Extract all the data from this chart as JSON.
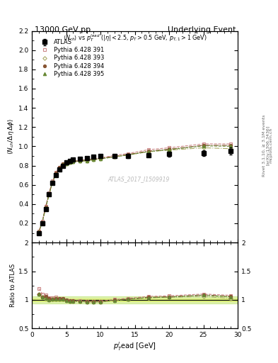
{
  "title_left": "13000 GeV pp",
  "title_right": "Underlying Event",
  "watermark": "ATLAS_2017_I1509919",
  "ylim_main": [
    0.0,
    2.2
  ],
  "ylim_ratio": [
    0.5,
    2.0
  ],
  "xlim": [
    0,
    30
  ],
  "yticks_main": [
    0.2,
    0.4,
    0.6,
    0.8,
    1.0,
    1.2,
    1.4,
    1.6,
    1.8,
    2.0,
    2.2
  ],
  "atlas_x": [
    1.0,
    1.5,
    2.0,
    2.5,
    3.0,
    3.5,
    4.0,
    4.5,
    5.0,
    5.5,
    6.0,
    7.0,
    8.0,
    9.0,
    10.0,
    12.0,
    14.0,
    17.0,
    20.0,
    25.0,
    29.0
  ],
  "atlas_y": [
    0.1,
    0.2,
    0.35,
    0.5,
    0.62,
    0.7,
    0.76,
    0.8,
    0.83,
    0.85,
    0.86,
    0.87,
    0.88,
    0.89,
    0.9,
    0.9,
    0.9,
    0.91,
    0.92,
    0.93,
    0.95
  ],
  "atlas_yerr": [
    0.008,
    0.01,
    0.012,
    0.013,
    0.013,
    0.012,
    0.01,
    0.01,
    0.01,
    0.01,
    0.01,
    0.01,
    0.01,
    0.01,
    0.01,
    0.01,
    0.02,
    0.02,
    0.025,
    0.028,
    0.035
  ],
  "p391_x": [
    1.0,
    1.5,
    2.0,
    2.5,
    3.0,
    3.5,
    4.0,
    4.5,
    5.0,
    5.5,
    6.0,
    7.0,
    8.0,
    9.0,
    10.0,
    12.0,
    14.0,
    17.0,
    20.0,
    25.0,
    29.0
  ],
  "p391_y": [
    0.12,
    0.22,
    0.38,
    0.52,
    0.64,
    0.73,
    0.78,
    0.82,
    0.83,
    0.84,
    0.85,
    0.855,
    0.86,
    0.87,
    0.88,
    0.905,
    0.925,
    0.965,
    0.985,
    1.025,
    1.025
  ],
  "p393_x": [
    1.0,
    1.5,
    2.0,
    2.5,
    3.0,
    3.5,
    4.0,
    4.5,
    5.0,
    5.5,
    6.0,
    7.0,
    8.0,
    9.0,
    10.0,
    12.0,
    14.0,
    17.0,
    20.0,
    25.0,
    29.0
  ],
  "p393_y": [
    0.11,
    0.21,
    0.36,
    0.5,
    0.63,
    0.71,
    0.77,
    0.81,
    0.82,
    0.83,
    0.84,
    0.845,
    0.85,
    0.86,
    0.87,
    0.89,
    0.91,
    0.945,
    0.96,
    0.985,
    0.975
  ],
  "p394_x": [
    1.0,
    1.5,
    2.0,
    2.5,
    3.0,
    3.5,
    4.0,
    4.5,
    5.0,
    5.5,
    6.0,
    7.0,
    8.0,
    9.0,
    10.0,
    12.0,
    14.0,
    17.0,
    20.0,
    25.0,
    29.0
  ],
  "p394_y": [
    0.11,
    0.21,
    0.37,
    0.51,
    0.63,
    0.72,
    0.78,
    0.82,
    0.83,
    0.84,
    0.845,
    0.85,
    0.86,
    0.87,
    0.875,
    0.895,
    0.915,
    0.95,
    0.97,
    1.01,
    1.01
  ],
  "p395_x": [
    1.0,
    1.5,
    2.0,
    2.5,
    3.0,
    3.5,
    4.0,
    4.5,
    5.0,
    5.5,
    6.0,
    7.0,
    8.0,
    9.0,
    10.0,
    12.0,
    14.0,
    17.0,
    20.0,
    25.0,
    29.0
  ],
  "p395_y": [
    0.11,
    0.21,
    0.36,
    0.5,
    0.63,
    0.71,
    0.77,
    0.81,
    0.82,
    0.83,
    0.84,
    0.845,
    0.85,
    0.86,
    0.87,
    0.89,
    0.91,
    0.945,
    0.965,
    1.005,
    1.0
  ],
  "color_391": "#cc8888",
  "color_393": "#aaaa66",
  "color_394": "#885533",
  "color_395": "#668833",
  "ratio_band_green": "#aadd44",
  "ratio_band_yellow": "#ffff88"
}
